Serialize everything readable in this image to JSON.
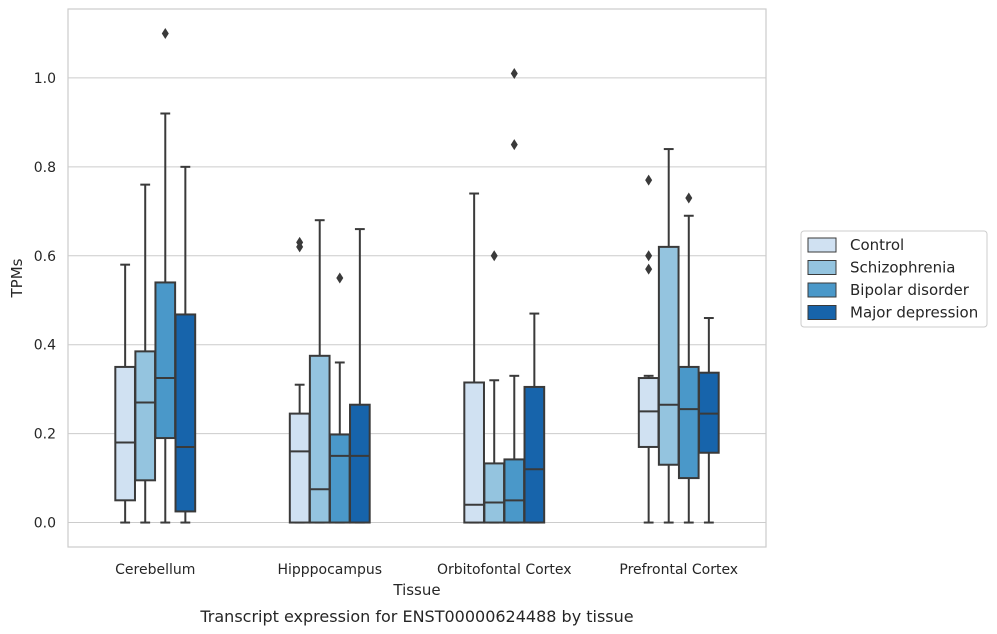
{
  "chart_data": {
    "type": "box",
    "title": "",
    "caption": "Transcript expression for ENST00000624488 by tissue",
    "xlabel": "Tissue",
    "ylabel": "TPMs",
    "ylim": [
      -0.055,
      1.155
    ],
    "yticks": [
      0.0,
      0.2,
      0.4,
      0.6,
      0.8,
      1.0
    ],
    "ytick_labels": [
      "0.0",
      "0.2",
      "0.4",
      "0.6",
      "0.8",
      "1.0"
    ],
    "grid": "y",
    "legend_position": "right",
    "categories": [
      "Cerebellum",
      "Hipppocampus",
      "Orbitofontal Cortex",
      "Prefrontal Cortex"
    ],
    "series": [
      {
        "name": "Control",
        "color": "#d0e1f2",
        "boxes": [
          {
            "whislo": 0.0,
            "q1": 0.05,
            "med": 0.18,
            "q3": 0.35,
            "whishi": 0.58,
            "fliers": []
          },
          {
            "whislo": 0.0,
            "q1": 0.0,
            "med": 0.16,
            "q3": 0.245,
            "whishi": 0.31,
            "fliers": [
              0.62,
              0.63
            ]
          },
          {
            "whislo": 0.0,
            "q1": 0.0,
            "med": 0.04,
            "q3": 0.315,
            "whishi": 0.74,
            "fliers": []
          },
          {
            "whislo": 0.0,
            "q1": 0.17,
            "med": 0.25,
            "q3": 0.325,
            "whishi": 0.33,
            "fliers": [
              0.57,
              0.6,
              0.77
            ]
          }
        ]
      },
      {
        "name": "Schizophrenia",
        "color": "#94c4df",
        "boxes": [
          {
            "whislo": 0.0,
            "q1": 0.095,
            "med": 0.27,
            "q3": 0.385,
            "whishi": 0.76,
            "fliers": []
          },
          {
            "whislo": 0.0,
            "q1": 0.0,
            "med": 0.075,
            "q3": 0.375,
            "whishi": 0.68,
            "fliers": []
          },
          {
            "whislo": 0.0,
            "q1": 0.0,
            "med": 0.045,
            "q3": 0.133,
            "whishi": 0.32,
            "fliers": [
              0.6
            ]
          },
          {
            "whislo": 0.0,
            "q1": 0.13,
            "med": 0.265,
            "q3": 0.62,
            "whishi": 0.84,
            "fliers": []
          }
        ]
      },
      {
        "name": "Bipolar disorder",
        "color": "#4a98c9",
        "boxes": [
          {
            "whislo": 0.0,
            "q1": 0.19,
            "med": 0.325,
            "q3": 0.54,
            "whishi": 0.92,
            "fliers": [
              1.1
            ]
          },
          {
            "whislo": 0.0,
            "q1": 0.0,
            "med": 0.15,
            "q3": 0.198,
            "whishi": 0.36,
            "fliers": [
              0.55
            ]
          },
          {
            "whislo": 0.0,
            "q1": 0.0,
            "med": 0.05,
            "q3": 0.142,
            "whishi": 0.33,
            "fliers": [
              0.85,
              1.01
            ]
          },
          {
            "whislo": 0.0,
            "q1": 0.1,
            "med": 0.255,
            "q3": 0.35,
            "whishi": 0.69,
            "fliers": [
              0.73
            ]
          }
        ]
      },
      {
        "name": "Major depression",
        "color": "#1764ab",
        "boxes": [
          {
            "whislo": 0.0,
            "q1": 0.025,
            "med": 0.17,
            "q3": 0.468,
            "whishi": 0.8,
            "fliers": []
          },
          {
            "whislo": 0.0,
            "q1": 0.0,
            "med": 0.15,
            "q3": 0.265,
            "whishi": 0.66,
            "fliers": []
          },
          {
            "whislo": 0.0,
            "q1": 0.0,
            "med": 0.12,
            "q3": 0.305,
            "whishi": 0.47,
            "fliers": []
          },
          {
            "whislo": 0.0,
            "q1": 0.157,
            "med": 0.245,
            "q3": 0.337,
            "whishi": 0.46,
            "fliers": []
          }
        ]
      }
    ]
  }
}
